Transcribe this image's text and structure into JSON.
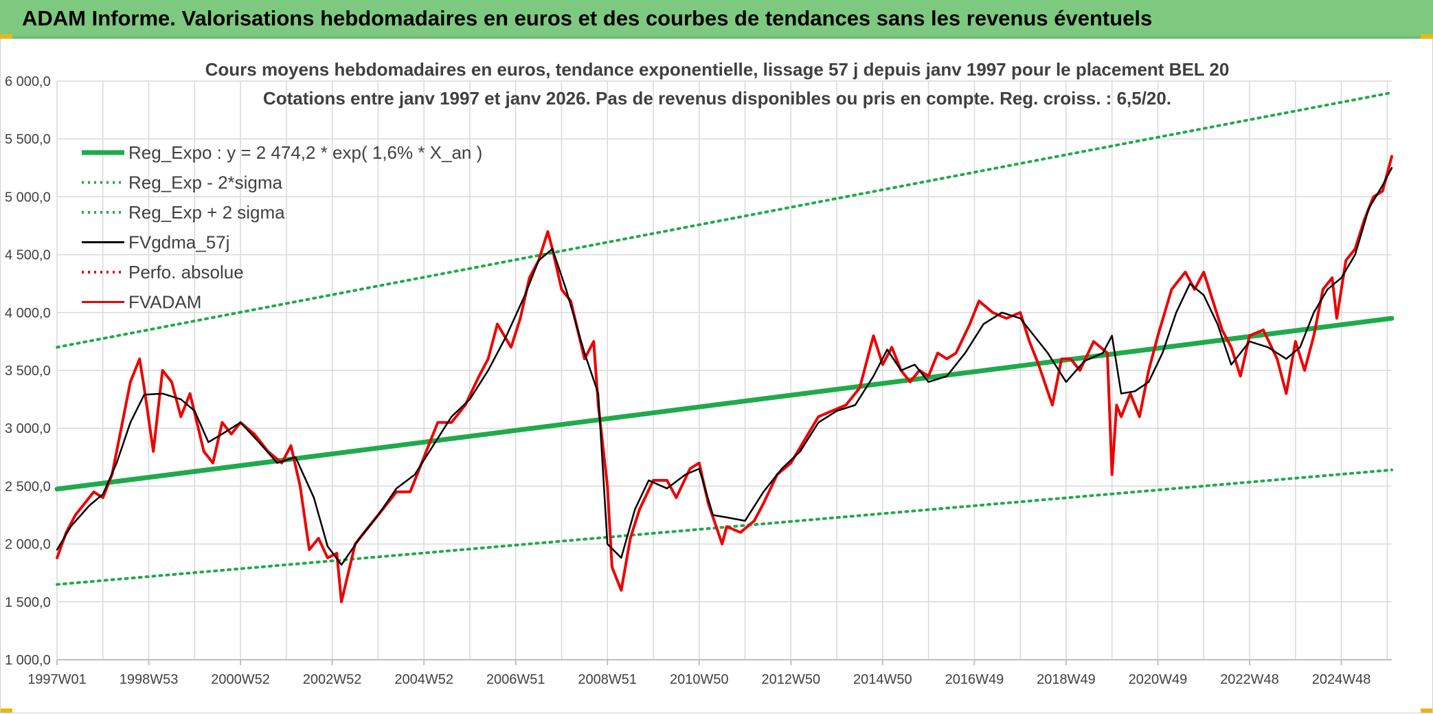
{
  "banner": {
    "title": "ADAM Informe. Valorisations hebdomadaires en euros et des courbes de tendances sans les revenus éventuels"
  },
  "colors": {
    "banner": "#7dc97f",
    "reg_expo": "#1faa4b",
    "sigma_bands": "#1faa4b",
    "fvgdma": "#000000",
    "perfo": "#e00000",
    "fvadam": "#ee0000",
    "grid": "#d9d9d9"
  },
  "chart_data": {
    "type": "line",
    "title_lines": [
      "Cours moyens hebdomadaires en euros, tendance exponentielle, lissage 57 j depuis janv 1997 pour le placement BEL 20",
      "Cotations entre janv 1997 et janv 2026. Pas de revenus disponibles ou pris en compte. Reg. croiss. : 6,5/20."
    ],
    "ylim": [
      1000,
      6000
    ],
    "y_ticks": [
      "1 000,0",
      "1 500,0",
      "2 000,0",
      "2 500,0",
      "3 000,0",
      "3 500,0",
      "4 000,0",
      "4 500,0",
      "5 000,0",
      "5 500,0",
      "6 000,0"
    ],
    "x_range": [
      1997.0,
      2026.1
    ],
    "x_ticks": [
      {
        "label": "1997W01",
        "x": 1997.0
      },
      {
        "label": "1998W53",
        "x": 1999.0
      },
      {
        "label": "2000W52",
        "x": 2001.0
      },
      {
        "label": "2002W52",
        "x": 2003.0
      },
      {
        "label": "2004W52",
        "x": 2005.0
      },
      {
        "label": "2006W51",
        "x": 2007.0
      },
      {
        "label": "2008W51",
        "x": 2009.0
      },
      {
        "label": "2010W50",
        "x": 2011.0
      },
      {
        "label": "2012W50",
        "x": 2013.0
      },
      {
        "label": "2014W50",
        "x": 2015.0
      },
      {
        "label": "2016W49",
        "x": 2017.0
      },
      {
        "label": "2018W49",
        "x": 2019.0
      },
      {
        "label": "2020W49",
        "x": 2021.0
      },
      {
        "label": "2022W48",
        "x": 2023.0
      },
      {
        "label": "2024W48",
        "x": 2025.0
      }
    ],
    "legend": [
      {
        "label": "Reg_Expo : y = 2 474,2 * exp( 1,6% *  X_an )",
        "style": "solid-thick",
        "color": "#1faa4b"
      },
      {
        "label": "Reg_Exp - 2*sigma",
        "style": "dotted",
        "color": "#1faa4b"
      },
      {
        "label": "Reg_Exp + 2 sigma",
        "style": "dotted",
        "color": "#1faa4b"
      },
      {
        "label": "FVgdma_57j",
        "style": "solid",
        "color": "#000000"
      },
      {
        "label": "Perfo. absolue",
        "style": "dotted",
        "color": "#e00000"
      },
      {
        "label": "FVADAM",
        "style": "solid",
        "color": "#ee0000"
      }
    ],
    "series": [
      {
        "name": "Reg_Expo : y = 2 474,2 * exp( 1,6% *  X_an )",
        "x": [
          1997.0,
          2026.1
        ],
        "y": [
          2474.2,
          3950
        ]
      },
      {
        "name": "Reg_Exp - 2*sigma",
        "x": [
          1997.0,
          2026.1
        ],
        "y": [
          1650,
          2640
        ]
      },
      {
        "name": "Reg_Exp + 2 sigma",
        "x": [
          1997.0,
          2026.1
        ],
        "y": [
          3700,
          5900
        ]
      },
      {
        "name": "FVgdma_57j",
        "x": [
          1997.0,
          1997.3,
          1997.7,
          1998.0,
          1998.3,
          1998.6,
          1998.9,
          1999.3,
          1999.7,
          2000.0,
          2000.3,
          2000.6,
          2001.0,
          2001.4,
          2001.8,
          2002.2,
          2002.6,
          2002.9,
          2003.2,
          2003.6,
          2004.0,
          2004.4,
          2004.8,
          2005.2,
          2005.6,
          2006.0,
          2006.4,
          2006.8,
          2007.2,
          2007.5,
          2007.8,
          2008.1,
          2008.5,
          2008.8,
          2009.0,
          2009.3,
          2009.6,
          2009.9,
          2010.3,
          2010.7,
          2011.0,
          2011.3,
          2011.6,
          2012.0,
          2012.4,
          2012.8,
          2013.2,
          2013.6,
          2014.0,
          2014.4,
          2014.8,
          2015.1,
          2015.4,
          2015.7,
          2016.0,
          2016.4,
          2016.8,
          2017.2,
          2017.6,
          2018.0,
          2018.3,
          2018.6,
          2019.0,
          2019.4,
          2019.8,
          2020.0,
          2020.2,
          2020.5,
          2020.8,
          2021.1,
          2021.4,
          2021.7,
          2022.0,
          2022.3,
          2022.6,
          2023.0,
          2023.4,
          2023.8,
          2024.1,
          2024.4,
          2024.7,
          2025.0,
          2025.3,
          2025.6,
          2025.9,
          2026.1
        ],
        "y": [
          1950,
          2150,
          2330,
          2430,
          2700,
          3050,
          3290,
          3300,
          3250,
          3150,
          2880,
          2950,
          3050,
          2880,
          2700,
          2750,
          2400,
          1980,
          1820,
          2050,
          2250,
          2480,
          2600,
          2850,
          3100,
          3250,
          3500,
          3800,
          4150,
          4450,
          4550,
          4200,
          3650,
          3300,
          2000,
          1880,
          2300,
          2550,
          2480,
          2600,
          2650,
          2250,
          2230,
          2200,
          2450,
          2650,
          2800,
          3050,
          3150,
          3200,
          3450,
          3680,
          3500,
          3550,
          3400,
          3450,
          3650,
          3900,
          4000,
          3950,
          3800,
          3650,
          3400,
          3580,
          3650,
          3800,
          3300,
          3320,
          3400,
          3650,
          4000,
          4250,
          4150,
          3900,
          3550,
          3750,
          3700,
          3600,
          3700,
          4000,
          4200,
          4300,
          4500,
          4900,
          5100,
          5250
        ]
      },
      {
        "name": "FVADAM",
        "x": [
          1997.0,
          1997.2,
          1997.4,
          1997.6,
          1997.8,
          1998.0,
          1998.2,
          1998.4,
          1998.6,
          1998.8,
          1998.9,
          1999.1,
          1999.3,
          1999.5,
          1999.7,
          1999.9,
          2000.2,
          2000.4,
          2000.6,
          2000.8,
          2001.0,
          2001.3,
          2001.6,
          2001.9,
          2002.1,
          2002.3,
          2002.5,
          2002.7,
          2002.9,
          2003.1,
          2003.2,
          2003.5,
          2003.8,
          2004.1,
          2004.4,
          2004.7,
          2005.0,
          2005.3,
          2005.6,
          2005.9,
          2006.2,
          2006.4,
          2006.6,
          2006.9,
          2007.1,
          2007.3,
          2007.5,
          2007.7,
          2007.8,
          2008.0,
          2008.2,
          2008.5,
          2008.7,
          2008.8,
          2009.0,
          2009.1,
          2009.3,
          2009.5,
          2009.7,
          2010.0,
          2010.3,
          2010.5,
          2010.8,
          2011.0,
          2011.2,
          2011.5,
          2011.6,
          2011.9,
          2012.2,
          2012.4,
          2012.7,
          2013.0,
          2013.3,
          2013.6,
          2013.9,
          2014.2,
          2014.5,
          2014.8,
          2015.0,
          2015.2,
          2015.4,
          2015.6,
          2015.8,
          2016.0,
          2016.2,
          2016.4,
          2016.6,
          2016.9,
          2017.1,
          2017.4,
          2017.7,
          2018.0,
          2018.2,
          2018.4,
          2018.7,
          2018.9,
          2019.1,
          2019.3,
          2019.6,
          2019.9,
          2020.0,
          2020.1,
          2020.2,
          2020.4,
          2020.6,
          2020.8,
          2021.0,
          2021.3,
          2021.6,
          2021.8,
          2022.0,
          2022.2,
          2022.4,
          2022.6,
          2022.8,
          2023.0,
          2023.3,
          2023.6,
          2023.8,
          2024.0,
          2024.2,
          2024.4,
          2024.6,
          2024.8,
          2024.9,
          2025.1,
          2025.3,
          2025.5,
          2025.7,
          2025.9,
          2026.1
        ],
        "y": [
          1880,
          2100,
          2250,
          2350,
          2450,
          2400,
          2600,
          3000,
          3400,
          3600,
          3350,
          2800,
          3500,
          3400,
          3100,
          3300,
          2800,
          2700,
          3050,
          2950,
          3050,
          2950,
          2800,
          2700,
          2850,
          2500,
          1950,
          2050,
          1880,
          1920,
          1500,
          2000,
          2150,
          2300,
          2450,
          2450,
          2750,
          3050,
          3050,
          3200,
          3450,
          3600,
          3900,
          3700,
          3950,
          4300,
          4450,
          4700,
          4550,
          4200,
          4100,
          3600,
          3750,
          3200,
          2500,
          1800,
          1600,
          2050,
          2300,
          2550,
          2550,
          2400,
          2650,
          2700,
          2350,
          2000,
          2150,
          2100,
          2200,
          2350,
          2600,
          2700,
          2900,
          3100,
          3150,
          3200,
          3350,
          3800,
          3550,
          3700,
          3500,
          3400,
          3500,
          3450,
          3650,
          3600,
          3650,
          3900,
          4100,
          4000,
          3950,
          4000,
          3750,
          3550,
          3200,
          3600,
          3600,
          3500,
          3750,
          3650,
          2600,
          3200,
          3100,
          3300,
          3100,
          3500,
          3800,
          4200,
          4350,
          4200,
          4350,
          4100,
          3850,
          3700,
          3450,
          3800,
          3850,
          3600,
          3300,
          3750,
          3500,
          3800,
          4200,
          4300,
          3950,
          4450,
          4550,
          4800,
          5000,
          5050,
          5350
        ]
      }
    ]
  }
}
